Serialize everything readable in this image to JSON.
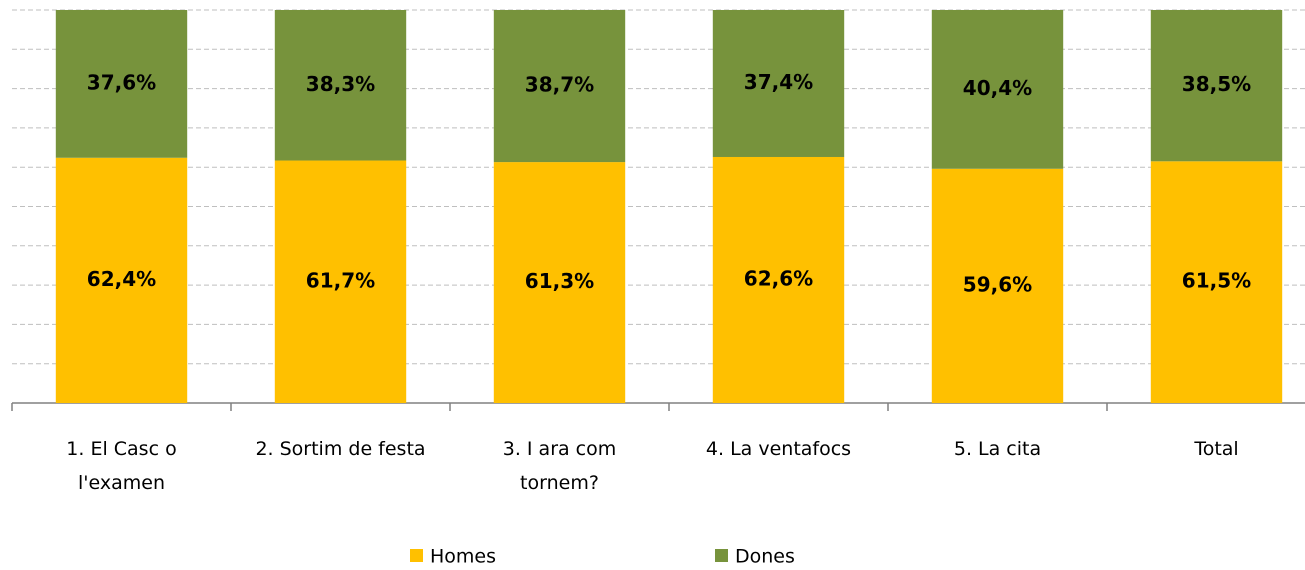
{
  "chart_data": {
    "type": "stacked_bar",
    "categories": [
      "1. El Casc o l'examen",
      "2. Sortim de festa",
      "3. I ara com tornem?",
      "4. La ventafocs",
      "5. La cita",
      "Total"
    ],
    "series": [
      {
        "name": "Homes",
        "color": "#FFC000",
        "values": [
          62.4,
          61.7,
          61.3,
          62.6,
          59.6,
          61.5
        ],
        "value_labels": [
          "62,4%",
          "61,7%",
          "61,3%",
          "62,6%",
          "59,6%",
          "61,5%"
        ]
      },
      {
        "name": "Dones",
        "color": "#77933C",
        "values": [
          37.6,
          38.3,
          38.7,
          37.4,
          40.4,
          38.5
        ],
        "value_labels": [
          "37,6%",
          "38,3%",
          "38,7%",
          "37,4%",
          "40,4%",
          "38,5%"
        ]
      }
    ],
    "ylim": [
      0,
      100
    ],
    "yticks": [
      0,
      10,
      20,
      30,
      40,
      50,
      60,
      70,
      80,
      90,
      100
    ],
    "grid": true
  }
}
